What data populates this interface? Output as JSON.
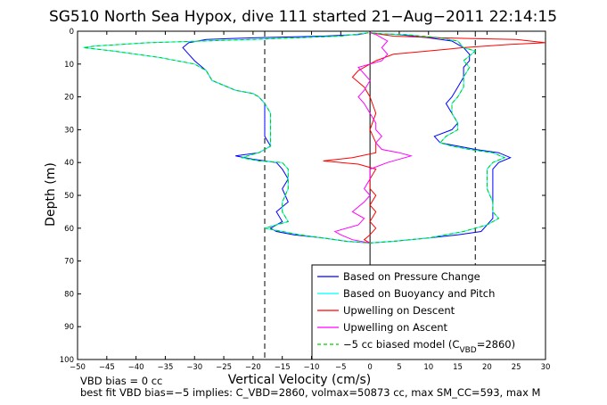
{
  "chart_data": {
    "type": "line",
    "title": "SG510 North Sea Hypox, dive 111 started 21−Aug−2011 22:14:15",
    "xlabel": "Vertical Velocity (cm/s)",
    "ylabel": "Depth (m)",
    "xlim": [
      -50,
      30
    ],
    "ylim": [
      100,
      0
    ],
    "x_ticks": [
      "−50",
      "−45",
      "−40",
      "−35",
      "−30",
      "−25",
      "−20",
      "−15",
      "−10",
      "−5",
      "0",
      "5",
      "10",
      "15",
      "20",
      "25",
      "30"
    ],
    "y_ticks": [
      "0",
      "10",
      "20",
      "30",
      "40",
      "50",
      "60",
      "70",
      "80",
      "90",
      "100"
    ],
    "grid": false,
    "legend_placement": "bottom-right",
    "vertical_reference_lines": [
      -18,
      0,
      18
    ],
    "series": [
      {
        "name": "Based on Pressure Change",
        "color": "#0000ff",
        "points": [
          [
            -0.3,
            0.5
          ],
          [
            -2,
            1
          ],
          [
            -8,
            1.5
          ],
          [
            -20,
            2
          ],
          [
            -28,
            2.5
          ],
          [
            -31,
            3.5
          ],
          [
            -32,
            5
          ],
          [
            -31,
            7
          ],
          [
            -30,
            9
          ],
          [
            -29,
            10.5
          ],
          [
            -28,
            12
          ],
          [
            -27,
            15
          ],
          [
            -23,
            18
          ],
          [
            -20,
            19
          ],
          [
            -19,
            20
          ],
          [
            -18,
            22
          ],
          [
            -18,
            25
          ],
          [
            -18,
            28
          ],
          [
            -18,
            32
          ],
          [
            -17,
            35
          ],
          [
            -19,
            37
          ],
          [
            -23,
            38
          ],
          [
            -20,
            39
          ],
          [
            -16,
            40
          ],
          [
            -15,
            42
          ],
          [
            -14,
            45
          ],
          [
            -15,
            48
          ],
          [
            -14,
            52
          ],
          [
            -16,
            55
          ],
          [
            -15,
            58
          ],
          [
            -17,
            60
          ],
          [
            -16,
            61
          ],
          [
            -13,
            62
          ],
          [
            -8,
            63
          ],
          [
            -4,
            64
          ],
          [
            0,
            64.5
          ],
          [
            4,
            64
          ],
          [
            10,
            63
          ],
          [
            15,
            62
          ],
          [
            19,
            61
          ],
          [
            20,
            59
          ],
          [
            21,
            57
          ],
          [
            21,
            55
          ],
          [
            21,
            52
          ],
          [
            21,
            48
          ],
          [
            21,
            45
          ],
          [
            21,
            42
          ],
          [
            22,
            40
          ],
          [
            24,
            38.5
          ],
          [
            22,
            37
          ],
          [
            18,
            36
          ],
          [
            15,
            35
          ],
          [
            12,
            34
          ],
          [
            11,
            32
          ],
          [
            14,
            30
          ],
          [
            15,
            28
          ],
          [
            14,
            25
          ],
          [
            13,
            22
          ],
          [
            14,
            20
          ],
          [
            15,
            17
          ],
          [
            16,
            14
          ],
          [
            16,
            11
          ],
          [
            17,
            9
          ],
          [
            17,
            7
          ],
          [
            16,
            5
          ],
          [
            14,
            3
          ],
          [
            10,
            2
          ],
          [
            5,
            1
          ],
          [
            2,
            0.8
          ],
          [
            0,
            0.5
          ]
        ]
      },
      {
        "name": "Based on Buoyancy and Pitch",
        "color": "#00ffff",
        "points": [
          [
            -0.3,
            0.5
          ],
          [
            -5,
            1.5
          ],
          [
            -20,
            2.5
          ],
          [
            -38,
            3.5
          ],
          [
            -47,
            4.5
          ],
          [
            -49,
            5
          ],
          [
            -44,
            6
          ],
          [
            -36,
            8
          ],
          [
            -30,
            10
          ],
          [
            -28,
            12
          ],
          [
            -27,
            15
          ],
          [
            -23,
            18
          ],
          [
            -20,
            19
          ],
          [
            -19,
            20
          ],
          [
            -18,
            22
          ],
          [
            -17,
            25
          ],
          [
            -17,
            28
          ],
          [
            -17,
            32
          ],
          [
            -17,
            35
          ],
          [
            -19,
            37
          ],
          [
            -22,
            38.5
          ],
          [
            -19,
            39.5
          ],
          [
            -15,
            40
          ],
          [
            -14,
            42
          ],
          [
            -14,
            45
          ],
          [
            -14,
            48
          ],
          [
            -15,
            52
          ],
          [
            -15,
            55
          ],
          [
            -14,
            58
          ],
          [
            -18,
            60
          ],
          [
            -15,
            61
          ],
          [
            -12,
            62
          ],
          [
            -8,
            63
          ],
          [
            -4,
            64
          ],
          [
            0,
            64.5
          ],
          [
            4,
            64
          ],
          [
            10,
            63
          ],
          [
            16,
            61
          ],
          [
            20,
            59
          ],
          [
            22,
            57
          ],
          [
            21,
            55
          ],
          [
            21,
            52
          ],
          [
            20,
            48
          ],
          [
            20,
            45
          ],
          [
            20,
            42
          ],
          [
            21,
            40
          ],
          [
            23,
            38.5
          ],
          [
            21,
            37
          ],
          [
            17,
            36
          ],
          [
            14,
            35
          ],
          [
            12,
            34
          ],
          [
            13,
            32
          ],
          [
            15,
            30
          ],
          [
            15,
            28
          ],
          [
            14,
            25
          ],
          [
            14,
            22
          ],
          [
            15,
            20
          ],
          [
            16,
            17
          ],
          [
            16,
            14
          ],
          [
            17,
            11
          ],
          [
            16,
            9
          ],
          [
            18,
            6
          ],
          [
            16,
            5
          ],
          [
            15,
            3
          ],
          [
            12,
            2
          ],
          [
            6,
            1
          ],
          [
            2,
            0.8
          ],
          [
            0,
            0.5
          ]
        ]
      },
      {
        "name": "Upwelling on Descent",
        "color": "#ff0000",
        "points": [
          [
            0,
            0.5
          ],
          [
            4,
            1.5
          ],
          [
            12,
            2
          ],
          [
            25,
            2.5
          ],
          [
            30,
            3.5
          ],
          [
            24,
            4
          ],
          [
            16,
            5
          ],
          [
            10,
            6
          ],
          [
            4,
            7
          ],
          [
            1,
            9
          ],
          [
            -2,
            12
          ],
          [
            -3,
            14
          ],
          [
            -1,
            17
          ],
          [
            0,
            20
          ],
          [
            1,
            25
          ],
          [
            0,
            30
          ],
          [
            1,
            34
          ],
          [
            1,
            37
          ],
          [
            -3,
            38.5
          ],
          [
            -8,
            39.5
          ],
          [
            -2,
            40.5
          ],
          [
            1,
            42
          ],
          [
            0,
            45
          ],
          [
            0,
            48
          ],
          [
            1,
            50
          ],
          [
            0,
            53
          ],
          [
            1,
            55
          ],
          [
            0,
            58
          ],
          [
            1,
            60
          ],
          [
            0,
            62
          ],
          [
            -1,
            63.5
          ],
          [
            0,
            64.5
          ]
        ]
      },
      {
        "name": "Upwelling on Ascent",
        "color": "#ff00ff",
        "points": [
          [
            0,
            64.5
          ],
          [
            -3,
            63.5
          ],
          [
            -5,
            62
          ],
          [
            -6,
            61
          ],
          [
            -2,
            59
          ],
          [
            -1,
            57
          ],
          [
            -3,
            55
          ],
          [
            -1,
            52
          ],
          [
            0,
            50
          ],
          [
            -1,
            48
          ],
          [
            0,
            45
          ],
          [
            0,
            42
          ],
          [
            3,
            40
          ],
          [
            7,
            38
          ],
          [
            5,
            37
          ],
          [
            2,
            36
          ],
          [
            1,
            34
          ],
          [
            2,
            32
          ],
          [
            1,
            30
          ],
          [
            1,
            28
          ],
          [
            0,
            25
          ],
          [
            -1,
            22
          ],
          [
            -2,
            20
          ],
          [
            -1,
            18
          ],
          [
            0,
            15
          ],
          [
            -1,
            13
          ],
          [
            -2,
            11
          ],
          [
            0,
            10
          ],
          [
            2,
            9
          ],
          [
            3,
            7
          ],
          [
            2,
            5
          ],
          [
            3,
            3
          ],
          [
            2,
            2
          ],
          [
            1,
            1
          ],
          [
            0,
            0.5
          ]
        ]
      },
      {
        "name": "−5 cc biased model (C_VBD=2860)",
        "color": "#00cc00",
        "dashed": true,
        "points": [
          [
            -0.3,
            0.5
          ],
          [
            -5,
            1.5
          ],
          [
            -20,
            2.5
          ],
          [
            -38,
            3.5
          ],
          [
            -47,
            4.5
          ],
          [
            -49,
            5
          ],
          [
            -44,
            6
          ],
          [
            -36,
            8
          ],
          [
            -30,
            10
          ],
          [
            -28,
            12
          ],
          [
            -27,
            15
          ],
          [
            -23,
            18
          ],
          [
            -20,
            19
          ],
          [
            -19,
            20
          ],
          [
            -18,
            22
          ],
          [
            -17,
            25
          ],
          [
            -17,
            28
          ],
          [
            -17,
            32
          ],
          [
            -17,
            35
          ],
          [
            -19,
            37
          ],
          [
            -22,
            38.5
          ],
          [
            -19,
            39.5
          ],
          [
            -15,
            40
          ],
          [
            -14,
            42
          ],
          [
            -14,
            45
          ],
          [
            -14,
            48
          ],
          [
            -15,
            52
          ],
          [
            -15,
            55
          ],
          [
            -14,
            58
          ],
          [
            -18,
            60
          ],
          [
            -15,
            61
          ],
          [
            -12,
            62
          ],
          [
            -8,
            63
          ],
          [
            -4,
            64
          ],
          [
            0,
            64.5
          ],
          [
            4,
            64
          ],
          [
            10,
            63
          ],
          [
            16,
            61
          ],
          [
            20,
            59
          ],
          [
            22,
            57
          ],
          [
            21,
            55
          ],
          [
            21,
            52
          ],
          [
            20,
            48
          ],
          [
            20,
            45
          ],
          [
            20,
            42
          ],
          [
            21,
            40
          ],
          [
            23,
            38.5
          ],
          [
            21,
            37
          ],
          [
            17,
            36
          ],
          [
            14,
            35
          ],
          [
            12,
            34
          ],
          [
            13,
            32
          ],
          [
            15,
            30
          ],
          [
            15,
            28
          ],
          [
            14,
            25
          ],
          [
            14,
            22
          ],
          [
            15,
            20
          ],
          [
            16,
            17
          ],
          [
            16,
            14
          ],
          [
            17,
            11
          ],
          [
            16,
            9
          ],
          [
            18,
            6
          ],
          [
            16,
            5
          ],
          [
            15,
            3
          ],
          [
            12,
            2
          ],
          [
            6,
            1
          ],
          [
            2,
            0.8
          ],
          [
            0,
            0.5
          ]
        ]
      }
    ],
    "legend": {
      "entries": [
        {
          "label": "Based on Pressure Change",
          "color": "#0000ff",
          "dashed": false
        },
        {
          "label": "Based on Buoyancy and Pitch",
          "color": "#00ffff",
          "dashed": false
        },
        {
          "label": "Upwelling on Descent",
          "color": "#ff0000",
          "dashed": false
        },
        {
          "label": "Upwelling on Ascent",
          "color": "#ff00ff",
          "dashed": false
        },
        {
          "label_prefix": "−5 cc biased model (C",
          "label_sub": "VBD",
          "label_suffix": "=2860)",
          "color": "#00cc00",
          "dashed": true
        }
      ]
    },
    "annotations": {
      "vbd_bias": "VBD bias = 0 cc",
      "best_fit": "best fit VBD bias=−5 implies: C_VBD=2860, volmax=50873 cc, max SM_CC=593, max M"
    }
  }
}
